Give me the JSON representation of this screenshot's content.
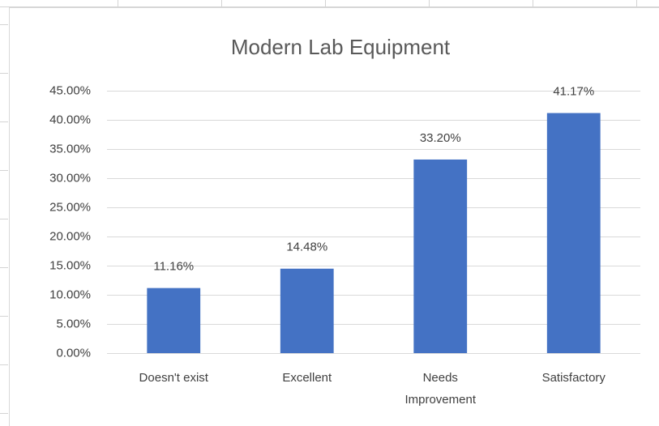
{
  "chart_data": {
    "type": "bar",
    "title": "Modern Lab Equipment",
    "categories": [
      "Doesn't exist",
      "Excellent",
      "Needs Improvement",
      "Satisfactory"
    ],
    "values": [
      11.16,
      14.48,
      33.2,
      41.17
    ],
    "value_labels": [
      "11.16%",
      "14.48%",
      "33.20%",
      "41.17%"
    ],
    "color": "#4472c4",
    "ylim": [
      0,
      45
    ],
    "yticks": [
      {
        "value": 0,
        "label": "0.00%"
      },
      {
        "value": 5,
        "label": "5.00%"
      },
      {
        "value": 10,
        "label": "10.00%"
      },
      {
        "value": 15,
        "label": "15.00%"
      },
      {
        "value": 20,
        "label": "20.00%"
      },
      {
        "value": 25,
        "label": "25.00%"
      },
      {
        "value": 30,
        "label": "30.00%"
      },
      {
        "value": 35,
        "label": "35.00%"
      },
      {
        "value": 40,
        "label": "40.00%"
      },
      {
        "value": 45,
        "label": "45.00%"
      }
    ],
    "grid": true
  }
}
